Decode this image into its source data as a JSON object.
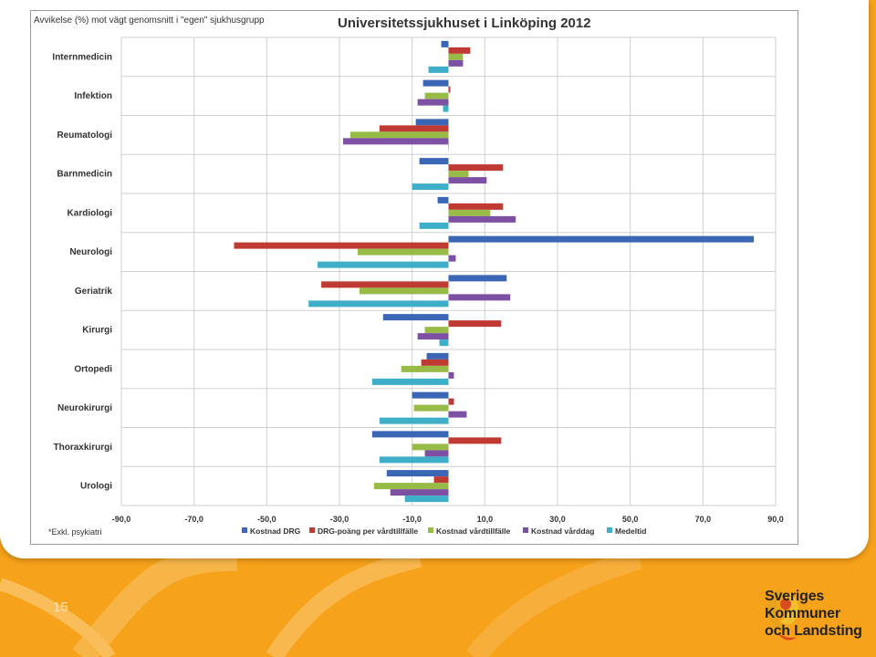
{
  "page": {
    "number": "15"
  },
  "logo": {
    "line1": "Sveriges",
    "line2": "Kommuner",
    "line3": "och Landsting"
  },
  "colors": {
    "background": "#f6a21a",
    "series": [
      "#3a66b5",
      "#c03a34",
      "#98bb48",
      "#7c50a2",
      "#3eaec9"
    ]
  },
  "chart_data": {
    "type": "bar",
    "orientation": "horizontal",
    "title": "Universitetssjukhuset i Linköping 2012",
    "ylabel": "Avvikelse (%) mot vägt genomsnitt i \"egen\" sjukhusgrupp",
    "footnote": "*Exkl. psykiatri",
    "xlim": [
      -90,
      90
    ],
    "xticks": [
      "-90,0",
      "-70,0",
      "-50,0",
      "-30,0",
      "-10,0",
      "10,0",
      "30,0",
      "50,0",
      "70,0",
      "90,0"
    ],
    "grid": true,
    "legend_position": "bottom",
    "categories": [
      "Internmedicin",
      "Infektion",
      "Reumatologi",
      "Barnmedicin",
      "Kardiologi",
      "Neurologi",
      "Geriatrik",
      "Kirurgi",
      "Ortopedi",
      "Neurokirurgi",
      "Thoraxkirurgi",
      "Urologi"
    ],
    "series": [
      {
        "name": "Kostnad DRG",
        "color": "#3a66b5",
        "values": [
          -2,
          -7,
          -9,
          -8,
          -3,
          84,
          16,
          -18,
          -6,
          -10,
          -21,
          -17
        ]
      },
      {
        "name": "DRG-poäng per vårdtillfälle",
        "color": "#c03a34",
        "values": [
          6,
          0.5,
          -19,
          15,
          15,
          -59,
          -35,
          14.5,
          -7.5,
          1.5,
          14.5,
          -4
        ]
      },
      {
        "name": "Kostnad vårdtillfälle",
        "color": "#98bb48",
        "values": [
          4,
          -6.5,
          -27,
          5.5,
          11.5,
          -25,
          -24.5,
          -6.5,
          -13,
          -9.5,
          -10,
          -20.5
        ]
      },
      {
        "name": "Kostnad vårddag",
        "color": "#7c50a2",
        "values": [
          4,
          -8.5,
          -29,
          10.5,
          18.5,
          2,
          17,
          -8.5,
          1.5,
          5,
          -6.5,
          -16
        ]
      },
      {
        "name": "Medeltid",
        "color": "#3eaec9",
        "values": [
          -5.5,
          -1.5,
          0,
          -10,
          -8,
          -36,
          -38.5,
          -2.5,
          -21,
          -19,
          -19,
          -12
        ]
      }
    ]
  }
}
